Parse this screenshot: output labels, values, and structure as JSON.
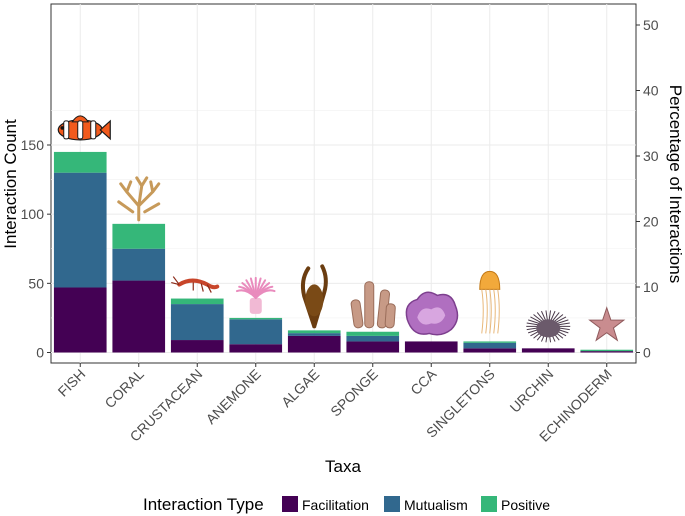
{
  "chart_data": {
    "type": "bar",
    "stacked": true,
    "xlabel": "Taxa",
    "ylabel": "Interaction Count",
    "y2label": "Percentage of Interactions",
    "ylim": [
      0,
      180
    ],
    "y2lim": [
      0,
      52.6
    ],
    "yticks": [
      0,
      50,
      100,
      150
    ],
    "y2ticks": [
      0,
      10,
      20,
      30,
      40,
      50
    ],
    "grid": true,
    "legend_position": "bottom",
    "legend_title": "Interaction Type",
    "categories": [
      "FISH",
      "CORAL",
      "CRUSTACEAN",
      "ANEMONE",
      "ALGAE",
      "SPONGE",
      "CCA",
      "SINGLETONS",
      "URCHIN",
      "ECHINODERM"
    ],
    "series": [
      {
        "name": "Facilitation",
        "color": "#440154",
        "values": [
          47,
          52,
          9,
          6,
          12,
          8,
          8,
          3,
          3,
          1
        ]
      },
      {
        "name": "Mutualism",
        "color": "#31688e",
        "values": [
          83,
          23,
          26,
          18,
          2,
          4,
          0,
          4,
          0,
          0
        ]
      },
      {
        "name": "Positive",
        "color": "#35b779",
        "values": [
          15,
          18,
          4,
          1,
          2,
          3,
          0,
          1,
          0,
          1
        ]
      }
    ],
    "icons": [
      "clownfish-icon",
      "coral-icon",
      "shrimp-icon",
      "anemone-icon",
      "algae-icon",
      "sponge-icon",
      "cca-icon",
      "jellyfish-icon",
      "urchin-icon",
      "sea-star-icon"
    ]
  }
}
